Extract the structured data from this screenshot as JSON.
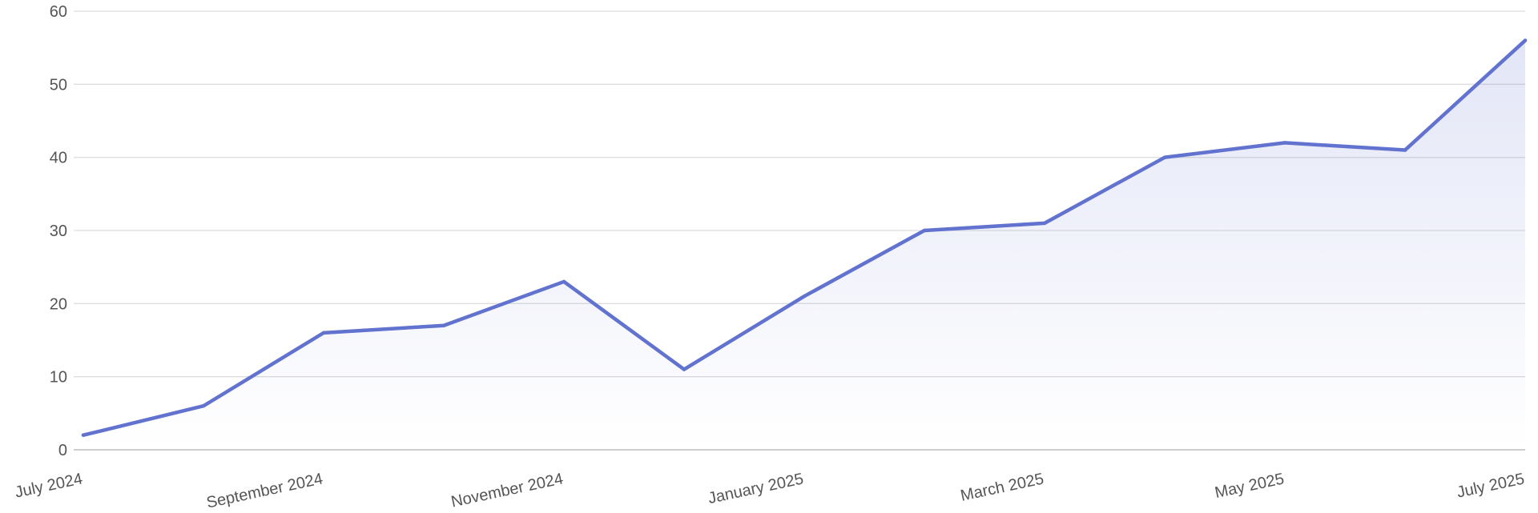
{
  "chart_data": {
    "type": "area",
    "title": "",
    "xlabel": "",
    "ylabel": "",
    "x": [
      "2024-07",
      "2024-08",
      "2024-09",
      "2024-10",
      "2024-11",
      "2024-12",
      "2025-01",
      "2025-02",
      "2025-03",
      "2025-04",
      "2025-05",
      "2025-06",
      "2025-07"
    ],
    "x_tick_labels": [
      "July 2024",
      "September 2024",
      "November 2024",
      "January 2025",
      "March 2025",
      "May 2025",
      "July 2025"
    ],
    "x_tick_indices": [
      0,
      2,
      4,
      6,
      8,
      10,
      12
    ],
    "y_ticks": [
      0,
      10,
      20,
      30,
      40,
      50,
      60
    ],
    "ylim": [
      0,
      60
    ],
    "grid": true,
    "legend": "none",
    "series": [
      {
        "values": [
          2,
          6,
          16,
          17,
          23,
          11,
          21,
          30,
          31,
          40,
          42,
          41,
          56
        ],
        "color": "#6272cf"
      }
    ]
  }
}
